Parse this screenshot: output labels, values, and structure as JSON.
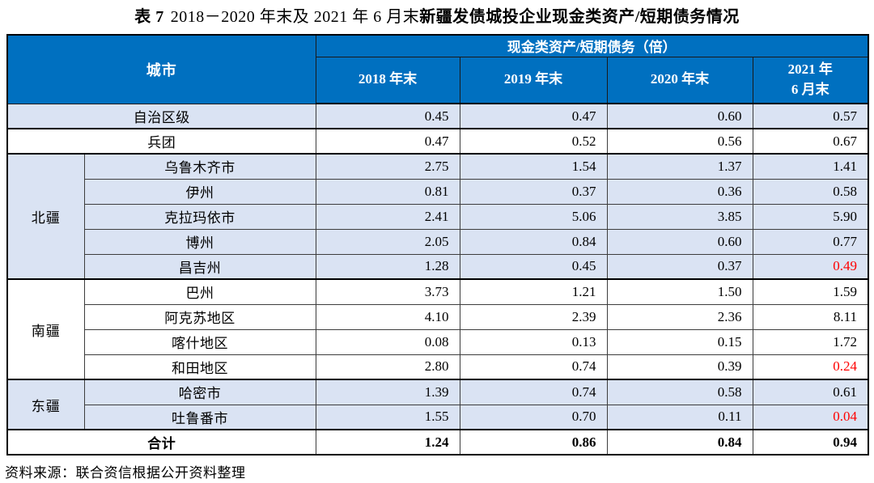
{
  "title": {
    "prefix": "表 7",
    "period": "2018－2020 年末及 2021 年 6 月末",
    "subject": "新疆发债城投企业现金类资产/短期债务情况"
  },
  "table": {
    "columns": {
      "city": "城市",
      "metric_group": "现金类资产/短期债务（倍）",
      "periods": [
        "2018 年末",
        "2019 年末",
        "2020 年末",
        "2021 年\n6 月末"
      ]
    },
    "sections": [
      {
        "kind": "single",
        "label": "自治区级",
        "shaded": true,
        "values": [
          "0.45",
          "0.47",
          "0.60",
          "0.57"
        ],
        "red": []
      },
      {
        "kind": "single",
        "label": "兵团",
        "shaded": false,
        "values": [
          "0.47",
          "0.52",
          "0.56",
          "0.67"
        ],
        "red": []
      },
      {
        "kind": "group",
        "label": "北疆",
        "shaded": true,
        "rows": [
          {
            "city": "乌鲁木齐市",
            "values": [
              "2.75",
              "1.54",
              "1.37",
              "1.41"
            ],
            "red": []
          },
          {
            "city": "伊州",
            "values": [
              "0.81",
              "0.37",
              "0.36",
              "0.58"
            ],
            "red": []
          },
          {
            "city": "克拉玛依市",
            "values": [
              "2.41",
              "5.06",
              "3.85",
              "5.90"
            ],
            "red": []
          },
          {
            "city": "博州",
            "values": [
              "2.05",
              "0.84",
              "0.60",
              "0.77"
            ],
            "red": []
          },
          {
            "city": "昌吉州",
            "values": [
              "1.28",
              "0.45",
              "0.37",
              "0.49"
            ],
            "red": [
              3
            ]
          }
        ]
      },
      {
        "kind": "group",
        "label": "南疆",
        "shaded": false,
        "rows": [
          {
            "city": "巴州",
            "values": [
              "3.73",
              "1.21",
              "1.50",
              "1.59"
            ],
            "red": []
          },
          {
            "city": "阿克苏地区",
            "values": [
              "4.10",
              "2.39",
              "2.36",
              "8.11"
            ],
            "red": []
          },
          {
            "city": "喀什地区",
            "values": [
              "0.08",
              "0.13",
              "0.15",
              "1.72"
            ],
            "red": []
          },
          {
            "city": "和田地区",
            "values": [
              "2.80",
              "0.74",
              "0.39",
              "0.24"
            ],
            "red": [
              3
            ]
          }
        ]
      },
      {
        "kind": "group",
        "label": "东疆",
        "shaded": true,
        "rows": [
          {
            "city": "哈密市",
            "values": [
              "1.39",
              "0.74",
              "0.58",
              "0.61"
            ],
            "red": []
          },
          {
            "city": "吐鲁番市",
            "values": [
              "1.55",
              "0.70",
              "0.11",
              "0.04"
            ],
            "red": [
              3
            ]
          }
        ]
      },
      {
        "kind": "total",
        "label": "合计",
        "shaded": false,
        "values": [
          "1.24",
          "0.86",
          "0.84",
          "0.94"
        ],
        "red": []
      }
    ]
  },
  "footer": {
    "source": "资料来源：联合资信根据公开资料整理"
  },
  "colors": {
    "header_bg": "#0070C0",
    "header_text": "#FFFFFF",
    "shaded_row_bg": "#DAE3F3",
    "highlight_red": "#FF0000",
    "border": "#000000"
  }
}
